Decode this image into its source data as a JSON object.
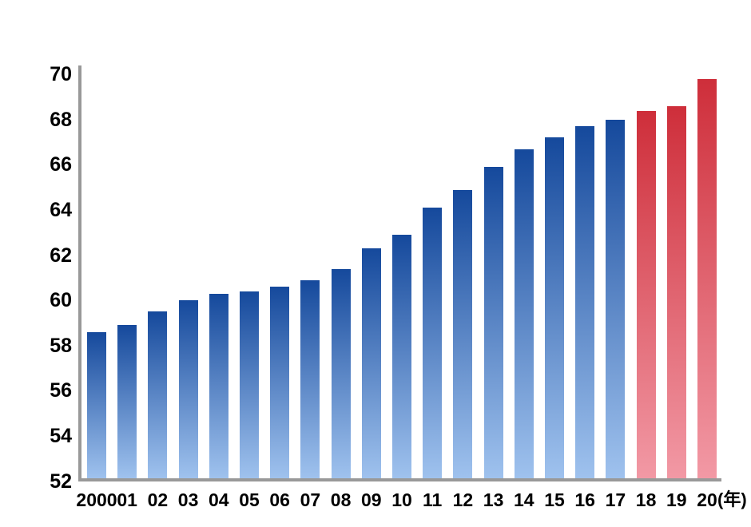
{
  "chart_data": {
    "type": "bar",
    "title": "",
    "categories": [
      "2000",
      "01",
      "02",
      "03",
      "04",
      "05",
      "06",
      "07",
      "08",
      "09",
      "10",
      "11",
      "12",
      "13",
      "14",
      "15",
      "16",
      "17",
      "18",
      "19",
      "20"
    ],
    "values": [
      58.6,
      58.9,
      59.5,
      60.0,
      60.3,
      60.4,
      60.6,
      60.9,
      61.4,
      62.3,
      62.9,
      64.1,
      64.9,
      65.9,
      66.7,
      67.2,
      67.7,
      68.0,
      68.4,
      68.6,
      69.8
    ],
    "x_axis_unit_label": "(年)",
    "y_ticks": [
      52,
      54,
      56,
      58,
      60,
      62,
      64,
      66,
      68,
      70
    ],
    "ylim": [
      52,
      70
    ],
    "grid": false,
    "legend_position": "none",
    "highlight_start_index": 18,
    "colors": {
      "bar_gradient_top": "#15499C",
      "bar_gradient_bottom": "#9FC2EE",
      "highlight_gradient_top": "#CE2E3A",
      "highlight_gradient_bottom": "#F299A5",
      "axis_line": "#999999",
      "label_text": "#000000",
      "background": "#FFFFFF"
    }
  }
}
